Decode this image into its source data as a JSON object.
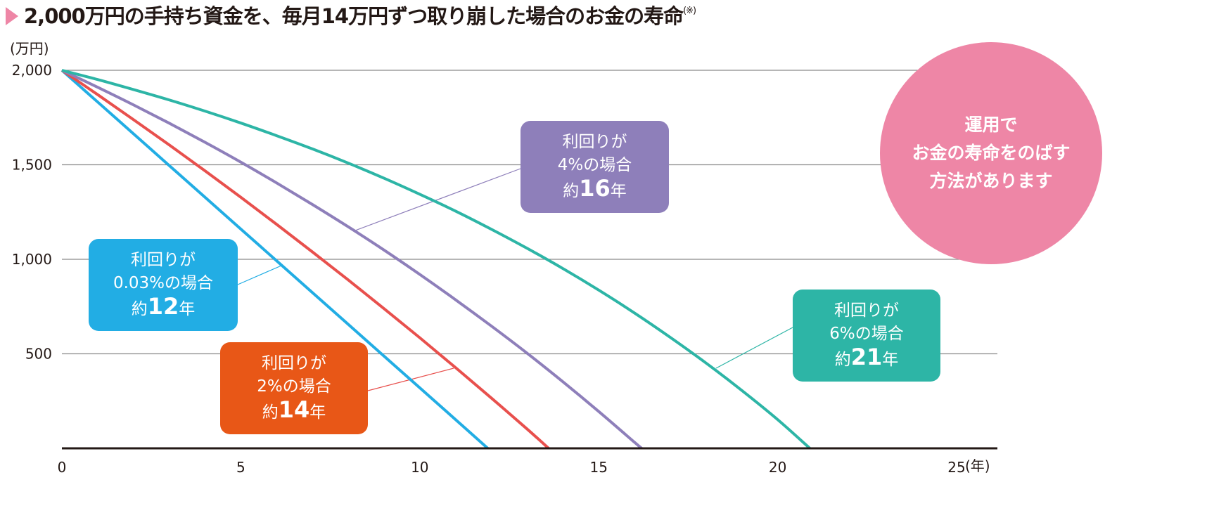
{
  "title": {
    "text": "2,000万円の手持ち資金を、毎月14万円ずつ取り崩した場合のお金の寿命",
    "note": "(※)"
  },
  "chart_data": {
    "type": "line",
    "title": "2,000万円の手持ち資金を、毎月14万円ずつ取り崩した場合のお金の寿命",
    "ylabel": "(万円)",
    "xlabel": "(年)",
    "xlim": [
      0,
      25
    ],
    "ylim": [
      0,
      2000
    ],
    "x_ticks": [
      "0",
      "5",
      "10",
      "15",
      "20",
      "25"
    ],
    "y_ticks": [
      "500",
      "1,000",
      "1,500",
      "2,000"
    ],
    "y_tick_values": [
      500,
      1000,
      1500,
      2000
    ],
    "grid": "horizontal",
    "series": [
      {
        "name": "利回りが0.03%の場合",
        "color": "#22ade4",
        "x": [
          0,
          1,
          2,
          3,
          4,
          5,
          6,
          7,
          8,
          9,
          10,
          11,
          11.9
        ],
        "values": [
          2000,
          1832,
          1664,
          1496,
          1328,
          1160,
          992,
          824,
          656,
          488,
          320,
          152,
          0
        ]
      },
      {
        "name": "利回りが2%の場合",
        "color": "#e8504d",
        "x": [
          0,
          1,
          2,
          3,
          4,
          5,
          6,
          7,
          8,
          9,
          10,
          11,
          12,
          13,
          13.6
        ],
        "values": [
          2000,
          1871,
          1739,
          1605,
          1468,
          1328,
          1185,
          1039,
          891,
          739,
          585,
          427,
          266,
          102,
          0
        ]
      },
      {
        "name": "利回りが4%の場合",
        "color": "#8e7fba",
        "x": [
          0,
          1,
          2,
          3,
          4,
          5,
          6,
          7,
          8,
          9,
          10,
          11,
          12,
          13,
          14,
          15,
          16,
          16.2
        ],
        "values": [
          2000,
          1910,
          1817,
          1720,
          1619,
          1514,
          1404,
          1290,
          1172,
          1049,
          920,
          786,
          647,
          503,
          352,
          195,
          32,
          0
        ]
      },
      {
        "name": "利回りが6%の場合",
        "color": "#2db5a6",
        "x": [
          0,
          1,
          2,
          3,
          4,
          5,
          6,
          7,
          8,
          9,
          10,
          11,
          12,
          13,
          14,
          15,
          16,
          17,
          18,
          19,
          20,
          20.9
        ],
        "values": [
          2000,
          1951,
          1898,
          1843,
          1784,
          1721,
          1654,
          1584,
          1509,
          1429,
          1344,
          1255,
          1159,
          1058,
          951,
          837,
          716,
          587,
          451,
          306,
          152,
          0
        ]
      }
    ]
  },
  "labels": [
    {
      "line1": "利回りが",
      "line2": "0.03%の場合",
      "pre": "約",
      "years": "12",
      "post": "年",
      "color": "#22ade4"
    },
    {
      "line1": "利回りが",
      "line2": "2%の場合",
      "pre": "約",
      "years": "14",
      "post": "年",
      "color": "#e85717"
    },
    {
      "line1": "利回りが",
      "line2": "4%の場合",
      "pre": "約",
      "years": "16",
      "post": "年",
      "color": "#8e7fba"
    },
    {
      "line1": "利回りが",
      "line2": "6%の場合",
      "pre": "約",
      "years": "21",
      "post": "年",
      "color": "#2db5a6"
    }
  ],
  "callout": {
    "line1": "運用で",
    "line2": "お金の寿命をのばす",
    "line3": "方法があります",
    "color": "#ee86a6"
  }
}
